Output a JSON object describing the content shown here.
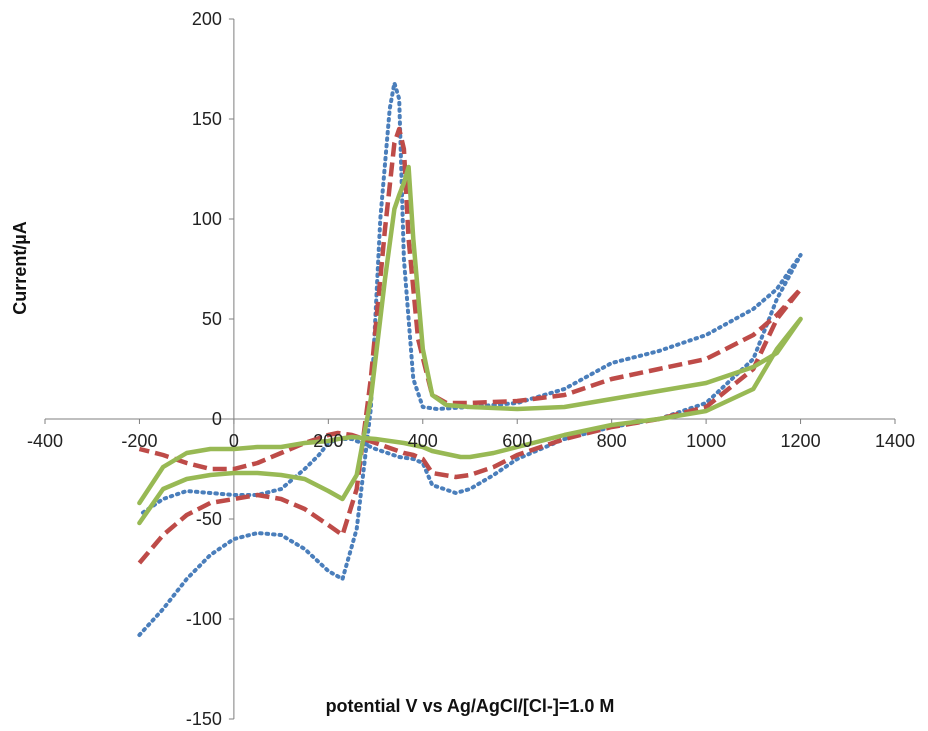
{
  "chart_data": {
    "type": "line",
    "title": "",
    "xlabel": "potential V vs Ag/AgCl/[Cl-]=1.0 M",
    "ylabel": "Current/µA",
    "xlim": [
      -400,
      1400
    ],
    "ylim": [
      -150,
      200
    ],
    "x_ticks": [
      "-400",
      "-200",
      "0",
      "200",
      "400",
      "600",
      "800",
      "1000",
      "1200",
      "1400"
    ],
    "y_ticks": [
      "200",
      "150",
      "100",
      "50",
      "0",
      "-50",
      "-100",
      "-150"
    ],
    "grid": false,
    "legend": "none",
    "series": [
      {
        "color": "#4a7ebb",
        "style": "dotted",
        "x": [
          -200,
          -150,
          -100,
          -50,
          0,
          50,
          100,
          150,
          200,
          230,
          260,
          290,
          310,
          330,
          340,
          350,
          360,
          380,
          400,
          430,
          500,
          600,
          700,
          800,
          900,
          1000,
          1100,
          1150,
          1200,
          1150,
          1100,
          1000,
          900,
          800,
          700,
          600,
          550,
          500,
          470,
          420,
          400,
          380,
          350,
          300,
          250,
          220,
          200,
          180,
          150,
          100,
          50,
          0,
          -50,
          -100,
          -150,
          -200
        ],
        "y": [
          -108,
          -95,
          -80,
          -68,
          -60,
          -57,
          -58,
          -65,
          -76,
          -80,
          -55,
          5,
          100,
          155,
          168,
          160,
          80,
          20,
          6,
          5,
          6,
          8,
          15,
          28,
          34,
          42,
          55,
          65,
          82,
          60,
          30,
          8,
          0,
          -4,
          -10,
          -20,
          -28,
          -35,
          -37,
          -33,
          -22,
          -20,
          -19,
          -15,
          -10,
          -10,
          -12,
          -18,
          -25,
          -35,
          -38,
          -38,
          -37,
          -36,
          -40,
          -48
        ]
      },
      {
        "color": "#be4b48",
        "style": "dashed",
        "x": [
          -200,
          -150,
          -100,
          -50,
          0,
          50,
          100,
          150,
          200,
          230,
          260,
          290,
          320,
          340,
          350,
          360,
          370,
          390,
          420,
          450,
          500,
          600,
          700,
          800,
          900,
          1000,
          1100,
          1150,
          1200,
          1150,
          1100,
          1000,
          900,
          800,
          700,
          600,
          550,
          500,
          470,
          420,
          400,
          380,
          360,
          300,
          250,
          220,
          200,
          150,
          100,
          50,
          0,
          -50,
          -100,
          -150,
          -200
        ],
        "y": [
          -72,
          -58,
          -48,
          -42,
          -40,
          -38,
          -40,
          -45,
          -53,
          -58,
          -35,
          20,
          95,
          138,
          145,
          135,
          90,
          40,
          12,
          8,
          8,
          9,
          12,
          20,
          25,
          30,
          42,
          52,
          65,
          50,
          25,
          6,
          0,
          -4,
          -10,
          -18,
          -24,
          -28,
          -29,
          -27,
          -20,
          -18,
          -17,
          -12,
          -8,
          -7,
          -8,
          -12,
          -17,
          -22,
          -25,
          -25,
          -22,
          -18,
          -15
        ]
      },
      {
        "color": "#98b954",
        "style": "solid",
        "x": [
          -200,
          -150,
          -100,
          -50,
          0,
          50,
          100,
          150,
          200,
          230,
          260,
          290,
          320,
          340,
          350,
          360,
          370,
          380,
          400,
          420,
          450,
          500,
          600,
          700,
          800,
          900,
          1000,
          1100,
          1150,
          1200,
          1150,
          1100,
          1000,
          900,
          800,
          700,
          600,
          550,
          500,
          480,
          420,
          400,
          380,
          360,
          300,
          250,
          220,
          200,
          150,
          100,
          50,
          0,
          -50,
          -100,
          -150,
          -200
        ],
        "y": [
          -52,
          -35,
          -30,
          -28,
          -27,
          -27,
          -28,
          -30,
          -36,
          -40,
          -28,
          10,
          70,
          105,
          112,
          118,
          126,
          90,
          35,
          12,
          7,
          6,
          5,
          6,
          10,
          14,
          18,
          26,
          33,
          50,
          35,
          15,
          4,
          0,
          -3,
          -8,
          -14,
          -17,
          -19,
          -19,
          -16,
          -14,
          -13,
          -12,
          -10,
          -9,
          -10,
          -11,
          -12,
          -14,
          -14,
          -15,
          -15,
          -17,
          -24,
          -42
        ]
      }
    ]
  }
}
